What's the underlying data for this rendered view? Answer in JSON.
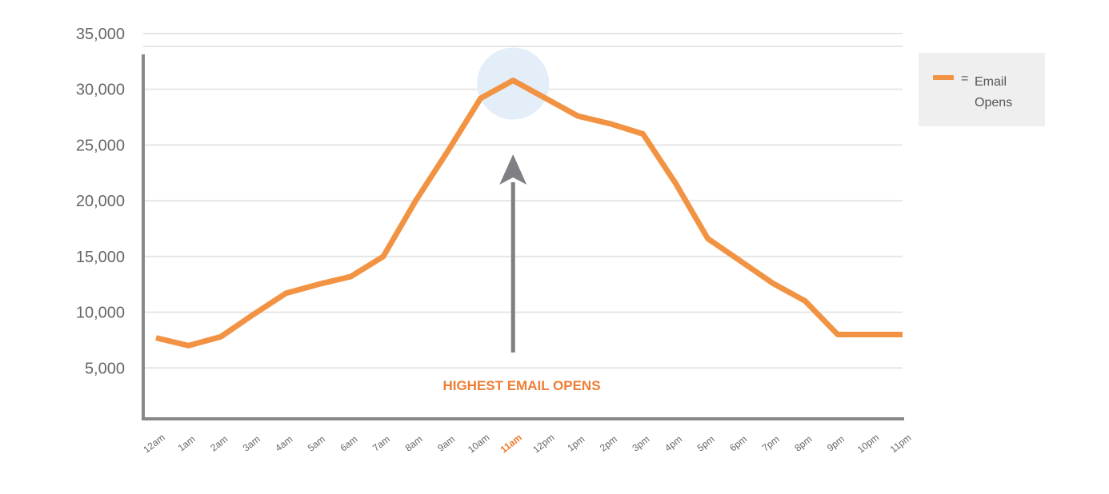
{
  "chart_data": {
    "type": "line",
    "x": [
      "12am",
      "1am",
      "2am",
      "3am",
      "4am",
      "5am",
      "6am",
      "7am",
      "8am",
      "9am",
      "10am",
      "11am",
      "12pm",
      "1pm",
      "2pm",
      "3pm",
      "4pm",
      "5pm",
      "6pm",
      "7pm",
      "8pm",
      "9pm",
      "10pm",
      "11pm"
    ],
    "series": [
      {
        "name": "Email Opens",
        "values": [
          7700,
          7000,
          7800,
          9800,
          11700,
          12500,
          13200,
          15000,
          20000,
          24500,
          29200,
          30800,
          29200,
          27600,
          26900,
          26000,
          21600,
          16600,
          14600,
          12600,
          11000,
          8000,
          8000,
          8000
        ]
      }
    ],
    "y_ticks": [
      "5,000",
      "10,000",
      "15,000",
      "20,000",
      "25,000",
      "30,000",
      "35,000"
    ],
    "ylim": [
      0,
      35000
    ],
    "highlight_index": 11,
    "annotation": "HIGHEST EMAIL OPENS",
    "grid": true,
    "legend_position": "top-right",
    "colors": {
      "line": "#f29343",
      "highlight_label": "#ee7a2b",
      "annotation": "#ef7d34",
      "axis": "#888888",
      "grid": "#e6e6e6",
      "tick_label": "#666666",
      "arrow": "#7f7f84",
      "halo": "#e3eef9"
    }
  },
  "legend": {
    "equals": "=",
    "label": "Email Opens"
  }
}
